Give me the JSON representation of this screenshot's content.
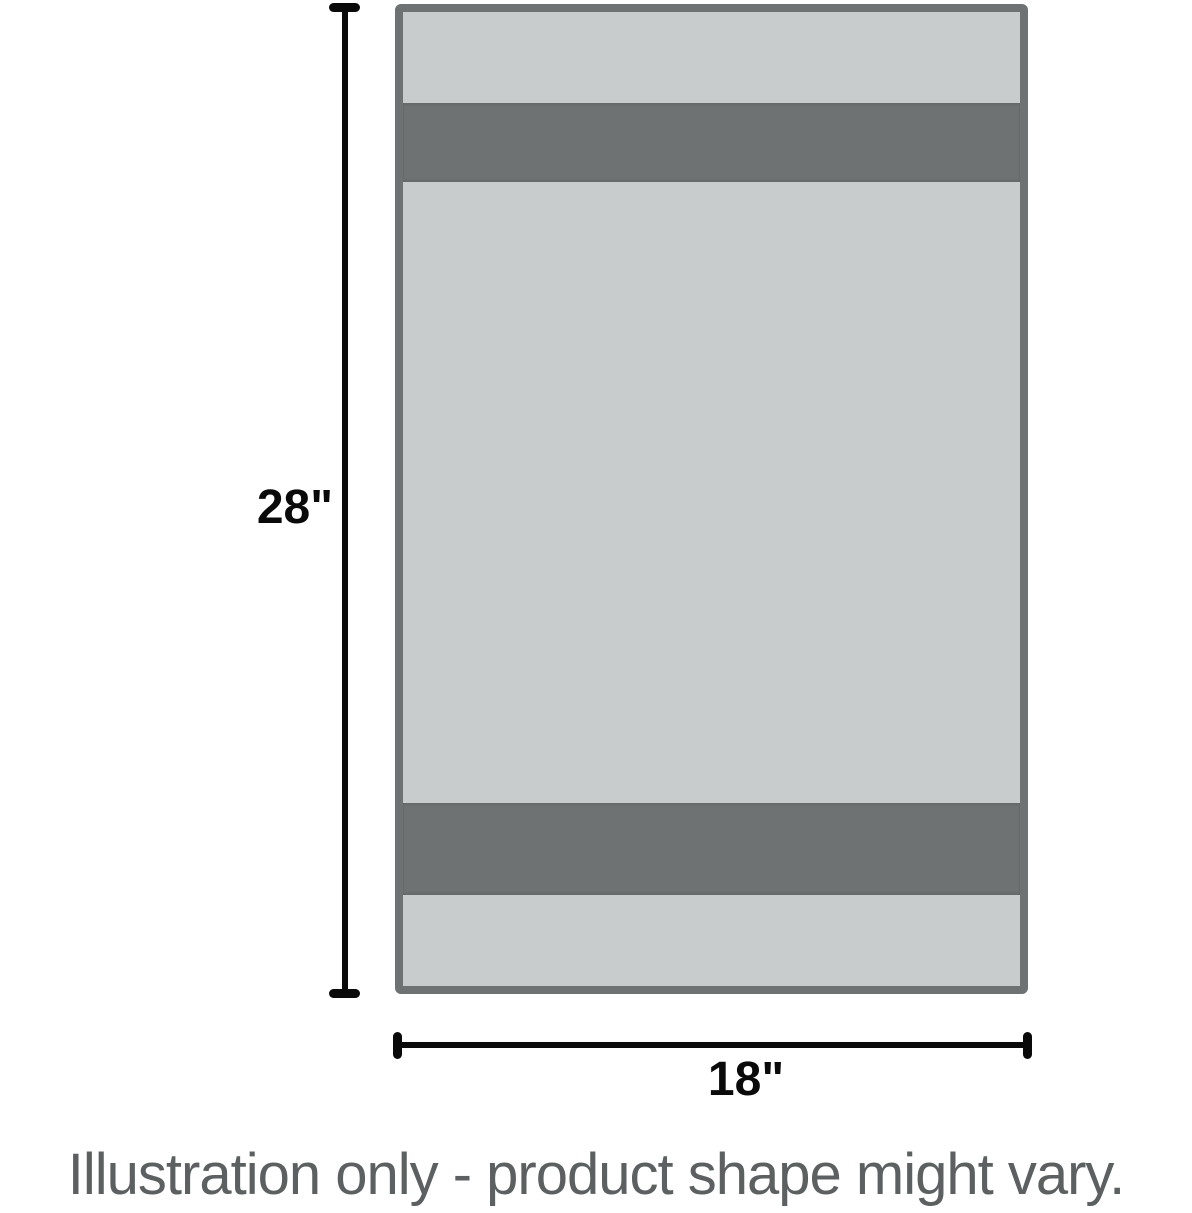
{
  "dimensions": {
    "height_label": "28\"",
    "width_label": "18\""
  },
  "caption": "Illustration only - product shape might vary.",
  "colors": {
    "towel_light_gray": "#c8cccd",
    "towel_dark_gray": "#6e7273",
    "dimension_line_black": "#0a0a0a",
    "caption_gray": "#5c6061"
  }
}
